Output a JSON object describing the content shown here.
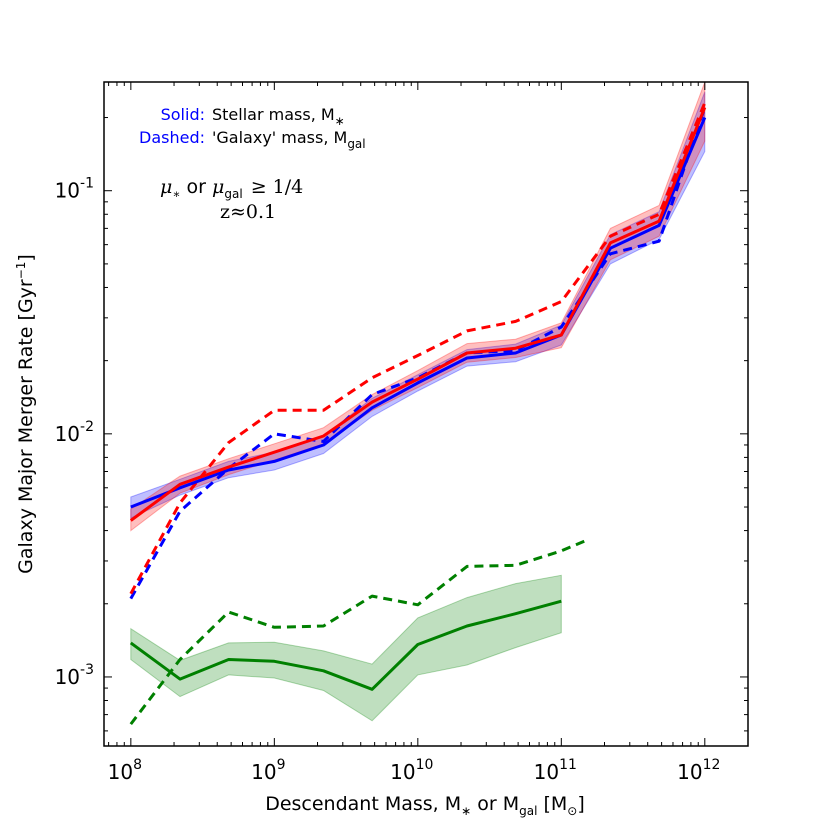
{
  "chart_data": {
    "type": "line",
    "xscale": "log",
    "yscale": "log",
    "xlim": [
      65000000,
      2000000000000
    ],
    "ylim": [
      0.00052,
      0.28
    ],
    "xlabel": "Descendant Mass, M_* or M_gal [M_sun]",
    "xlabel_parts": {
      "main": "Descendant Mass, M",
      "star": "∗",
      "or": " or M",
      "gal": "gal",
      "bracket_open": " [M",
      "sun": "⊙",
      "bracket_close": "]"
    },
    "ylabel": "Galaxy Major Merger Rate [Gyr^-1]",
    "ylabel_parts": {
      "main": "Galaxy Major Merger Rate [Gyr",
      "exp": "−1",
      "close": "]"
    },
    "x_ticks": [
      {
        "base": "10",
        "exp": "8",
        "value": 100000000
      },
      {
        "base": "10",
        "exp": "9",
        "value": 1000000000
      },
      {
        "base": "10",
        "exp": "10",
        "value": 10000000000
      },
      {
        "base": "10",
        "exp": "11",
        "value": 100000000000
      },
      {
        "base": "10",
        "exp": "12",
        "value": 1000000000000
      }
    ],
    "y_ticks": [
      {
        "base": "10",
        "exp": "-3",
        "value": 0.001
      },
      {
        "base": "10",
        "exp": "-2",
        "value": 0.01
      },
      {
        "base": "10",
        "exp": "-1",
        "value": 0.1
      }
    ],
    "legend": {
      "solid_key": "Solid:",
      "solid_text": "Stellar mass, M",
      "solid_sub": "∗",
      "dashed_key": "Dashed:",
      "dashed_text": "'Galaxy' mass, M",
      "dashed_sub": "gal"
    },
    "annotation": {
      "mu": "μ",
      "star": "∗",
      "or": " or ",
      "gal": "gal",
      "geq": "≥  1/4",
      "redshift": "z≈0.1"
    },
    "series": [
      {
        "name": "blue-solid",
        "color": "#0000ff",
        "style": "solid",
        "x": [
          100000000,
          220000000,
          480000000,
          1000000000,
          2200000000,
          4800000000,
          10000000000,
          22000000000,
          48000000000,
          100000000000,
          220000000000,
          480000000000,
          1000000000000
        ],
        "y": [
          0.005,
          0.006,
          0.0071,
          0.0077,
          0.009,
          0.0128,
          0.0162,
          0.0205,
          0.0215,
          0.0255,
          0.058,
          0.072,
          0.2
        ],
        "band_low": [
          0.0045,
          0.0056,
          0.0066,
          0.0071,
          0.0083,
          0.0118,
          0.015,
          0.019,
          0.0198,
          0.0232,
          0.05,
          0.063,
          0.145
        ],
        "band_high": [
          0.0055,
          0.0065,
          0.0077,
          0.0084,
          0.0098,
          0.014,
          0.0175,
          0.0222,
          0.0234,
          0.028,
          0.066,
          0.082,
          0.255
        ]
      },
      {
        "name": "red-solid",
        "color": "#ff0000",
        "style": "solid",
        "x": [
          100000000,
          220000000,
          480000000,
          1000000000,
          2200000000,
          4800000000,
          10000000000,
          22000000000,
          48000000000,
          100000000000,
          220000000000,
          480000000000,
          1000000000000
        ],
        "y": [
          0.0044,
          0.0062,
          0.0073,
          0.0084,
          0.0098,
          0.0135,
          0.0168,
          0.0215,
          0.0225,
          0.0255,
          0.061,
          0.075,
          0.22
        ],
        "band_low": [
          0.004,
          0.0057,
          0.0068,
          0.0078,
          0.0091,
          0.0125,
          0.0155,
          0.0197,
          0.0206,
          0.0226,
          0.052,
          0.065,
          0.16
        ],
        "band_high": [
          0.0049,
          0.0067,
          0.0079,
          0.0091,
          0.0106,
          0.0145,
          0.0182,
          0.0235,
          0.0245,
          0.0286,
          0.07,
          0.087,
          0.28
        ]
      },
      {
        "name": "blue-dashed",
        "color": "#0000ff",
        "style": "dashed",
        "x": [
          100000000,
          220000000,
          480000000,
          1000000000,
          2200000000,
          4800000000,
          10000000000,
          22000000000,
          48000000000,
          100000000000,
          220000000000,
          480000000000,
          1000000000000
        ],
        "y": [
          0.0021,
          0.0048,
          0.0072,
          0.01,
          0.0093,
          0.0145,
          0.017,
          0.0215,
          0.022,
          0.0275,
          0.055,
          0.062,
          0.22
        ]
      },
      {
        "name": "red-dashed",
        "color": "#ff0000",
        "style": "dashed",
        "x": [
          100000000,
          220000000,
          480000000,
          1000000000,
          2200000000,
          4800000000,
          10000000000,
          22000000000,
          48000000000,
          100000000000,
          220000000000,
          480000000000,
          1000000000000
        ],
        "y": [
          0.0022,
          0.0052,
          0.0092,
          0.0125,
          0.0125,
          0.017,
          0.021,
          0.0265,
          0.029,
          0.035,
          0.065,
          0.08,
          0.23
        ]
      },
      {
        "name": "green-solid",
        "color": "#008000",
        "style": "solid",
        "x": [
          100000000,
          220000000,
          480000000,
          1000000000,
          2200000000,
          4800000000,
          10000000000,
          22000000000,
          48000000000,
          100000000000
        ],
        "y": [
          0.00138,
          0.00098,
          0.00118,
          0.00116,
          0.00106,
          0.00089,
          0.00136,
          0.00162,
          0.00182,
          0.00205
        ],
        "band_low": [
          0.00118,
          0.00083,
          0.00102,
          0.00099,
          0.00088,
          0.00066,
          0.00102,
          0.00112,
          0.00132,
          0.00152
        ],
        "band_high": [
          0.00158,
          0.00117,
          0.00138,
          0.00139,
          0.00128,
          0.00113,
          0.00175,
          0.00212,
          0.00242,
          0.00262
        ]
      },
      {
        "name": "green-dashed",
        "color": "#008000",
        "style": "dashed",
        "x": [
          100000000,
          220000000,
          480000000,
          1000000000,
          2200000000,
          4800000000,
          10000000000,
          22000000000,
          48000000000,
          100000000000,
          150000000000
        ],
        "y": [
          0.00064,
          0.00118,
          0.00185,
          0.0016,
          0.00162,
          0.00215,
          0.00198,
          0.00285,
          0.00288,
          0.0033,
          0.00365
        ]
      }
    ]
  }
}
